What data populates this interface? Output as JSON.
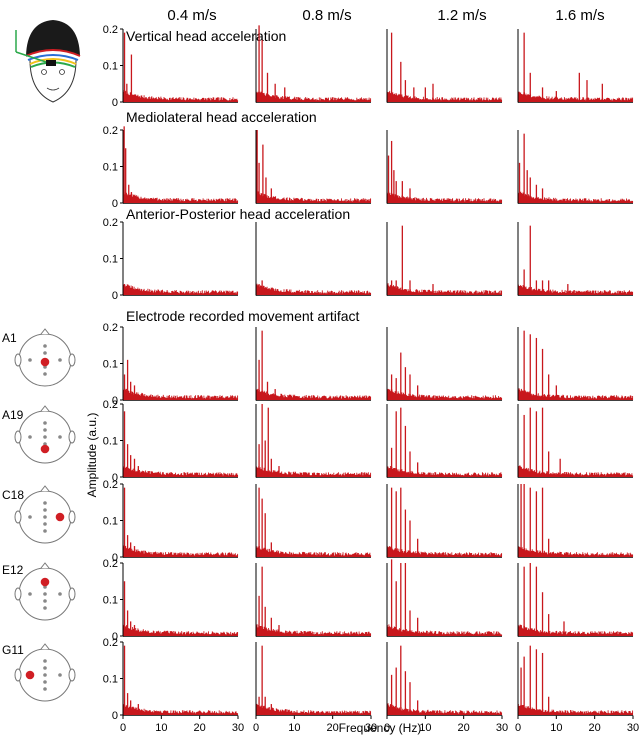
{
  "chart_data": {
    "type": "bar",
    "columns": [
      "0.4 m/s",
      "0.8 m/s",
      "1.2 m/s",
      "1.6 m/s"
    ],
    "section_titles": [
      "Vertical head acceleration",
      "Mediolateral head acceleration",
      "Anterior-Posterior head acceleration",
      "Electrode recorded movement artifact"
    ],
    "electrode_labels": [
      "A1",
      "A19",
      "C18",
      "E12",
      "G11"
    ],
    "xlabel": "Frequency (Hz)",
    "ylabel": "Amplitude (a.u.)",
    "x_ticks": [
      0,
      10,
      20,
      30
    ],
    "y_ticks": [
      "0",
      "0.1",
      "0.2"
    ],
    "xlim": [
      0,
      30
    ],
    "ylim": [
      0,
      0.2
    ],
    "bar_color": "#c8171c",
    "electrode_dot_color": "#d01e24",
    "rows": [
      {
        "name": "Vertical head acceleration",
        "panels": [
          {
            "peaks": [
              [
                0.4,
                0.19
              ],
              [
                2.2,
                0.13
              ],
              [
                1.0,
                0.05
              ]
            ]
          },
          {
            "peaks": [
              [
                0.8,
                0.21
              ],
              [
                1.6,
                0.17
              ],
              [
                3.0,
                0.08
              ],
              [
                5.0,
                0.05
              ],
              [
                7.5,
                0.04
              ]
            ]
          },
          {
            "peaks": [
              [
                1.2,
                0.19
              ],
              [
                3.6,
                0.11
              ],
              [
                4.8,
                0.06
              ],
              [
                7.0,
                0.04
              ],
              [
                10.0,
                0.04
              ],
              [
                12.0,
                0.05
              ]
            ]
          },
          {
            "peaks": [
              [
                1.6,
                0.19
              ],
              [
                3.2,
                0.08
              ],
              [
                6.4,
                0.04
              ],
              [
                10.0,
                0.03
              ],
              [
                16.0,
                0.08
              ],
              [
                18.0,
                0.06
              ],
              [
                22.0,
                0.05
              ]
            ]
          }
        ]
      },
      {
        "name": "Mediolateral head acceleration",
        "panels": [
          {
            "peaks": [
              [
                0.3,
                0.21
              ],
              [
                0.7,
                0.15
              ],
              [
                1.5,
                0.05
              ],
              [
                2.2,
                0.03
              ]
            ]
          },
          {
            "peaks": [
              [
                0.3,
                0.2
              ],
              [
                0.8,
                0.11
              ],
              [
                1.8,
                0.16
              ],
              [
                2.6,
                0.07
              ],
              [
                4.0,
                0.04
              ]
            ]
          },
          {
            "peaks": [
              [
                0.4,
                0.13
              ],
              [
                1.2,
                0.17
              ],
              [
                1.8,
                0.09
              ],
              [
                2.4,
                0.06
              ],
              [
                4.0,
                0.06
              ],
              [
                6.0,
                0.04
              ]
            ]
          },
          {
            "peaks": [
              [
                0.4,
                0.11
              ],
              [
                1.6,
                0.19
              ],
              [
                2.4,
                0.09
              ],
              [
                3.2,
                0.07
              ],
              [
                4.8,
                0.05
              ],
              [
                6.4,
                0.04
              ]
            ]
          }
        ]
      },
      {
        "name": "Anterior-Posterior head acceleration",
        "panels": [
          {
            "peaks": [
              [
                0.4,
                0.03
              ],
              [
                1.2,
                0.02
              ],
              [
                2.0,
                0.02
              ]
            ]
          },
          {
            "peaks": [
              [
                0.8,
                0.03
              ],
              [
                1.6,
                0.04
              ],
              [
                2.4,
                0.02
              ],
              [
                4.0,
                0.02
              ]
            ]
          },
          {
            "peaks": [
              [
                1.2,
                0.04
              ],
              [
                2.4,
                0.04
              ],
              [
                4.0,
                0.19
              ],
              [
                6.0,
                0.04
              ],
              [
                12.0,
                0.03
              ]
            ]
          },
          {
            "peaks": [
              [
                1.6,
                0.07
              ],
              [
                3.2,
                0.19
              ],
              [
                4.8,
                0.04
              ],
              [
                6.4,
                0.04
              ],
              [
                8.0,
                0.04
              ],
              [
                13.0,
                0.03
              ]
            ]
          }
        ]
      },
      {
        "name": "A1",
        "panels": [
          {
            "peaks": [
              [
                0.4,
                0.07
              ],
              [
                1.2,
                0.11
              ],
              [
                2.0,
                0.05
              ],
              [
                3.0,
                0.04
              ]
            ]
          },
          {
            "peaks": [
              [
                0.8,
                0.11
              ],
              [
                1.6,
                0.19
              ],
              [
                3.0,
                0.05
              ],
              [
                5.0,
                0.03
              ]
            ]
          },
          {
            "peaks": [
              [
                1.2,
                0.07
              ],
              [
                2.4,
                0.06
              ],
              [
                3.6,
                0.13
              ],
              [
                4.8,
                0.09
              ],
              [
                6.0,
                0.07
              ],
              [
                8.0,
                0.04
              ]
            ]
          },
          {
            "peaks": [
              [
                1.6,
                0.19
              ],
              [
                3.2,
                0.18
              ],
              [
                4.8,
                0.17
              ],
              [
                6.4,
                0.14
              ],
              [
                8.0,
                0.07
              ],
              [
                10.0,
                0.04
              ]
            ]
          }
        ]
      },
      {
        "name": "A19",
        "panels": [
          {
            "peaks": [
              [
                0.4,
                0.18
              ],
              [
                1.2,
                0.09
              ],
              [
                2.0,
                0.06
              ],
              [
                3.0,
                0.05
              ],
              [
                4.0,
                0.03
              ]
            ]
          },
          {
            "peaks": [
              [
                0.8,
                0.09
              ],
              [
                1.6,
                0.2
              ],
              [
                2.4,
                0.1
              ],
              [
                3.2,
                0.19
              ],
              [
                4.0,
                0.05
              ],
              [
                6.0,
                0.03
              ]
            ]
          },
          {
            "peaks": [
              [
                1.2,
                0.08
              ],
              [
                2.4,
                0.18
              ],
              [
                3.6,
                0.19
              ],
              [
                4.8,
                0.14
              ],
              [
                6.0,
                0.07
              ],
              [
                8.0,
                0.04
              ]
            ]
          },
          {
            "peaks": [
              [
                1.6,
                0.17
              ],
              [
                3.2,
                0.19
              ],
              [
                4.8,
                0.18
              ],
              [
                6.4,
                0.19
              ],
              [
                8.0,
                0.07
              ],
              [
                11.0,
                0.05
              ]
            ]
          }
        ]
      },
      {
        "name": "C18",
        "panels": [
          {
            "peaks": [
              [
                0.4,
                0.19
              ],
              [
                1.2,
                0.06
              ],
              [
                2.0,
                0.04
              ],
              [
                3.0,
                0.03
              ]
            ]
          },
          {
            "peaks": [
              [
                0.8,
                0.19
              ],
              [
                1.6,
                0.16
              ],
              [
                2.4,
                0.12
              ],
              [
                4.0,
                0.04
              ]
            ]
          },
          {
            "peaks": [
              [
                1.2,
                0.19
              ],
              [
                2.4,
                0.18
              ],
              [
                3.6,
                0.19
              ],
              [
                4.8,
                0.13
              ],
              [
                6.0,
                0.1
              ],
              [
                8.0,
                0.05
              ]
            ]
          },
          {
            "peaks": [
              [
                0.8,
                0.2
              ],
              [
                1.6,
                0.2
              ],
              [
                3.2,
                0.19
              ],
              [
                4.8,
                0.18
              ],
              [
                6.4,
                0.19
              ],
              [
                8.0,
                0.05
              ]
            ]
          }
        ]
      },
      {
        "name": "E12",
        "panels": [
          {
            "peaks": [
              [
                0.4,
                0.15
              ],
              [
                1.2,
                0.07
              ],
              [
                2.0,
                0.04
              ],
              [
                3.0,
                0.03
              ]
            ]
          },
          {
            "peaks": [
              [
                0.8,
                0.11
              ],
              [
                1.6,
                0.19
              ],
              [
                2.4,
                0.08
              ],
              [
                4.0,
                0.05
              ],
              [
                6.0,
                0.03
              ]
            ]
          },
          {
            "peaks": [
              [
                1.2,
                0.21
              ],
              [
                2.4,
                0.15
              ],
              [
                3.6,
                0.2
              ],
              [
                4.8,
                0.2
              ],
              [
                6.0,
                0.07
              ],
              [
                8.0,
                0.05
              ]
            ]
          },
          {
            "peaks": [
              [
                1.6,
                0.19
              ],
              [
                3.2,
                0.2
              ],
              [
                4.8,
                0.19
              ],
              [
                6.4,
                0.12
              ],
              [
                8.0,
                0.06
              ],
              [
                12.0,
                0.04
              ]
            ]
          }
        ]
      },
      {
        "name": "G11",
        "panels": [
          {
            "peaks": [
              [
                0.4,
                0.19
              ],
              [
                1.2,
                0.06
              ],
              [
                2.0,
                0.04
              ],
              [
                4.0,
                0.03
              ]
            ]
          },
          {
            "peaks": [
              [
                0.8,
                0.05
              ],
              [
                1.6,
                0.19
              ],
              [
                2.4,
                0.05
              ],
              [
                4.0,
                0.03
              ]
            ]
          },
          {
            "peaks": [
              [
                1.2,
                0.11
              ],
              [
                2.4,
                0.13
              ],
              [
                3.6,
                0.19
              ],
              [
                4.8,
                0.12
              ],
              [
                6.0,
                0.09
              ],
              [
                8.0,
                0.04
              ]
            ]
          },
          {
            "peaks": [
              [
                0.8,
                0.13
              ],
              [
                1.6,
                0.16
              ],
              [
                3.2,
                0.19
              ],
              [
                4.8,
                0.18
              ],
              [
                6.4,
                0.17
              ],
              [
                8.0,
                0.05
              ]
            ]
          }
        ]
      }
    ]
  }
}
